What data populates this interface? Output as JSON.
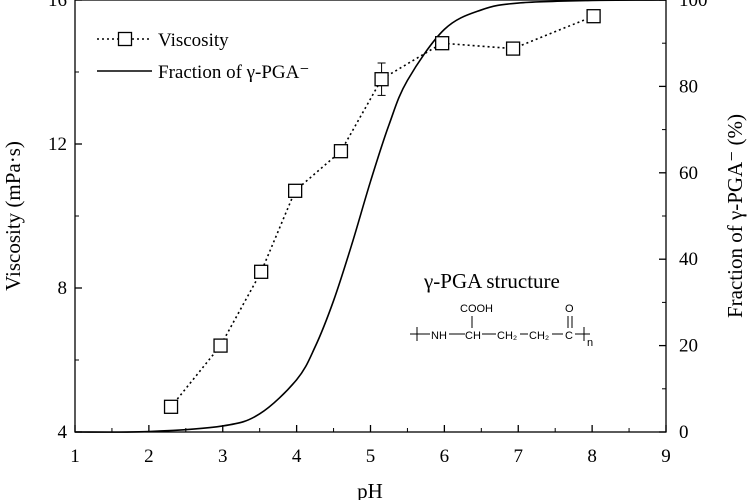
{
  "chart_data": {
    "type": "line",
    "xlabel": "pH",
    "ylabel": "Viscosity (mPa·s)",
    "y2label": "Fraction of γ-PGA⁻ (%)",
    "xlim": [
      1,
      9
    ],
    "ylim": [
      4,
      16
    ],
    "y2lim": [
      0,
      100
    ],
    "xticks": [
      1,
      2,
      3,
      4,
      5,
      6,
      7,
      8,
      9
    ],
    "yticks": [
      4,
      8,
      12,
      16
    ],
    "y2ticks": [
      0,
      20,
      40,
      60,
      80,
      100
    ],
    "legend_position": "top-left",
    "series": [
      {
        "name": "Viscosity",
        "axis": "left",
        "style": "dotted-line-open-square-markers",
        "x": [
          2.3,
          2.97,
          3.52,
          3.98,
          4.6,
          5.15,
          5.97,
          6.93,
          8.02
        ],
        "y": [
          4.7,
          6.4,
          8.45,
          10.7,
          11.8,
          13.8,
          14.8,
          14.65,
          15.55
        ],
        "yerr": [
          0.1,
          0.1,
          0.1,
          0.1,
          0.1,
          0.45,
          0.1,
          0.1,
          0.1
        ]
      },
      {
        "name": "Fraction of γ-PGA⁻",
        "axis": "right",
        "style": "solid-line",
        "pKa": 4.86,
        "x": [
          1.0,
          2.0,
          3.0,
          3.5,
          4.0,
          4.25,
          4.5,
          4.75,
          5.0,
          5.25,
          5.5,
          6.0,
          6.5,
          7.0,
          8.0,
          9.0
        ],
        "y": [
          0.0,
          0.1,
          1.4,
          4.2,
          12.1,
          19.7,
          30.4,
          43.6,
          58.0,
          71.1,
          81.4,
          93.2,
          97.7,
          99.3,
          99.9,
          100.0
        ]
      }
    ],
    "annotation": {
      "title": "γ-PGA structure",
      "side_group": "COOH",
      "chain_left": "NH",
      "chain_ch": "CH",
      "chain_ch2": "CH₂",
      "chain_c": "C",
      "carbonyl_o": "O",
      "subscript": "n"
    }
  }
}
